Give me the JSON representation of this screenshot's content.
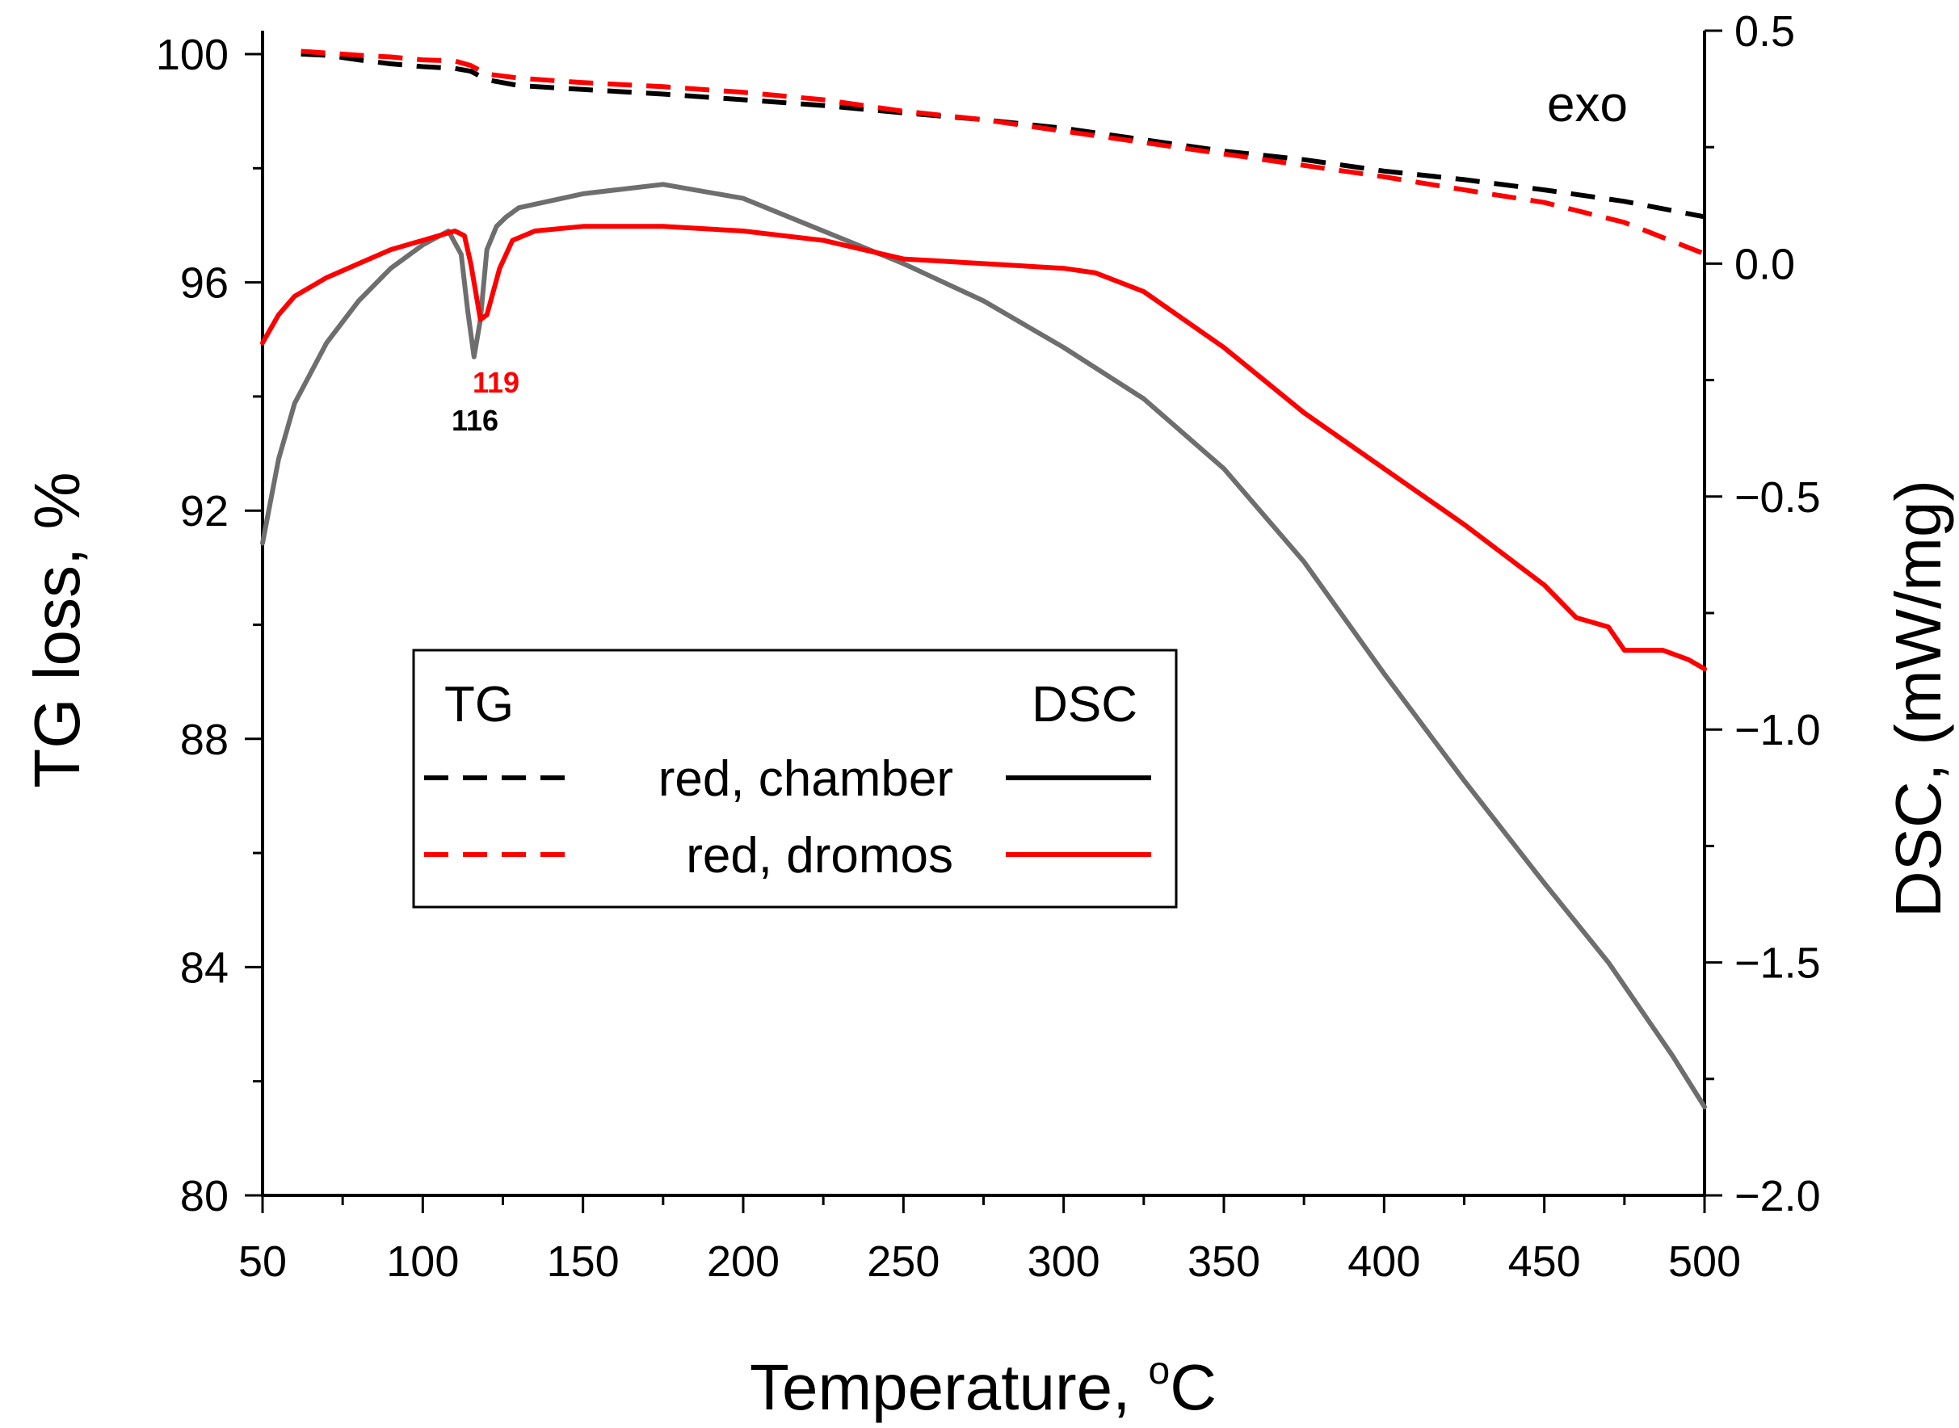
{
  "chart_data": {
    "type": "line",
    "xlabel": "Temperature, °C",
    "xlabel_main": "Temperature, ",
    "xlabel_sup": "o",
    "xlabel_unit": "C",
    "ylabel_left": "TG loss, %",
    "ylabel_right": "DSC, (mW/mg)",
    "xlim": [
      50,
      500
    ],
    "ylim_left": [
      80,
      100
    ],
    "ylim_right": [
      -2.0,
      0.5
    ],
    "x_ticks": [
      "50",
      "100",
      "150",
      "200",
      "250",
      "300",
      "350",
      "400",
      "450",
      "500"
    ],
    "y_left_ticks": [
      "80",
      "84",
      "88",
      "92",
      "96",
      "100"
    ],
    "y_right_ticks": [
      "−2.0",
      "−1.5",
      "−1.0",
      "−0.5",
      "0.0",
      "0.5"
    ],
    "exo_label": "exo",
    "legend": {
      "header_left": "TG",
      "header_right": "DSC",
      "entries": [
        "red, chamber",
        "red, dromos"
      ]
    },
    "annotations": [
      {
        "text": "119",
        "color": "#ff0000"
      },
      {
        "text": "116",
        "color": "#000000"
      }
    ],
    "series": [
      {
        "name": "TG red, chamber",
        "axis": "left",
        "style": "dashed",
        "color": "#000000",
        "x": [
          62,
          70,
          80,
          90,
          100,
          110,
          115,
          120,
          130,
          150,
          175,
          200,
          225,
          250,
          275,
          300,
          325,
          350,
          375,
          400,
          425,
          450,
          475,
          500
        ],
        "y": [
          100.0,
          99.98,
          99.9,
          99.83,
          99.78,
          99.75,
          99.7,
          99.55,
          99.45,
          99.38,
          99.3,
          99.2,
          99.1,
          98.97,
          98.85,
          98.7,
          98.5,
          98.3,
          98.15,
          97.95,
          97.8,
          97.62,
          97.42,
          97.15
        ]
      },
      {
        "name": "TG red, dromos",
        "axis": "left",
        "style": "dashed",
        "color": "#ff0000",
        "x": [
          62,
          70,
          80,
          90,
          100,
          110,
          115,
          120,
          130,
          150,
          175,
          200,
          225,
          250,
          275,
          300,
          325,
          350,
          375,
          400,
          425,
          450,
          475,
          500
        ],
        "y": [
          100.05,
          100.02,
          99.98,
          99.95,
          99.9,
          99.88,
          99.8,
          99.65,
          99.58,
          99.5,
          99.43,
          99.33,
          99.2,
          99.0,
          98.85,
          98.65,
          98.45,
          98.25,
          98.05,
          97.85,
          97.62,
          97.4,
          97.05,
          96.5
        ]
      },
      {
        "name": "DSC red, chamber",
        "axis": "right",
        "style": "solid",
        "color": "#6e6e6e",
        "x": [
          50,
          55,
          60,
          70,
          80,
          90,
          100,
          108,
          112,
          114,
          116,
          118,
          120,
          123,
          126,
          130,
          150,
          175,
          200,
          225,
          250,
          275,
          300,
          325,
          350,
          375,
          400,
          425,
          450,
          470,
          490,
          500
        ],
        "y": [
          -0.6,
          -0.42,
          -0.3,
          -0.17,
          -0.08,
          -0.01,
          0.04,
          0.07,
          0.02,
          -0.1,
          -0.2,
          -0.12,
          0.03,
          0.08,
          0.1,
          0.12,
          0.15,
          0.17,
          0.14,
          0.07,
          0.0,
          -0.08,
          -0.18,
          -0.29,
          -0.44,
          -0.64,
          -0.88,
          -1.11,
          -1.33,
          -1.5,
          -1.7,
          -1.81
        ]
      },
      {
        "name": "DSC red, dromos",
        "axis": "right",
        "style": "solid",
        "color": "#ff0000",
        "x": [
          50,
          55,
          60,
          70,
          80,
          90,
          100,
          110,
          113,
          115,
          118,
          120,
          124,
          128,
          135,
          150,
          175,
          200,
          225,
          250,
          275,
          300,
          310,
          325,
          350,
          375,
          400,
          425,
          450,
          460,
          465,
          470,
          475,
          480,
          487,
          495,
          500
        ],
        "y": [
          -0.17,
          -0.11,
          -0.07,
          -0.03,
          0.0,
          0.03,
          0.05,
          0.07,
          0.06,
          0.0,
          -0.12,
          -0.11,
          -0.01,
          0.05,
          0.07,
          0.08,
          0.08,
          0.07,
          0.05,
          0.01,
          0.0,
          -0.01,
          -0.02,
          -0.06,
          -0.18,
          -0.32,
          -0.44,
          -0.56,
          -0.69,
          -0.76,
          -0.77,
          -0.78,
          -0.83,
          -0.83,
          -0.83,
          -0.85,
          -0.87
        ]
      }
    ]
  }
}
